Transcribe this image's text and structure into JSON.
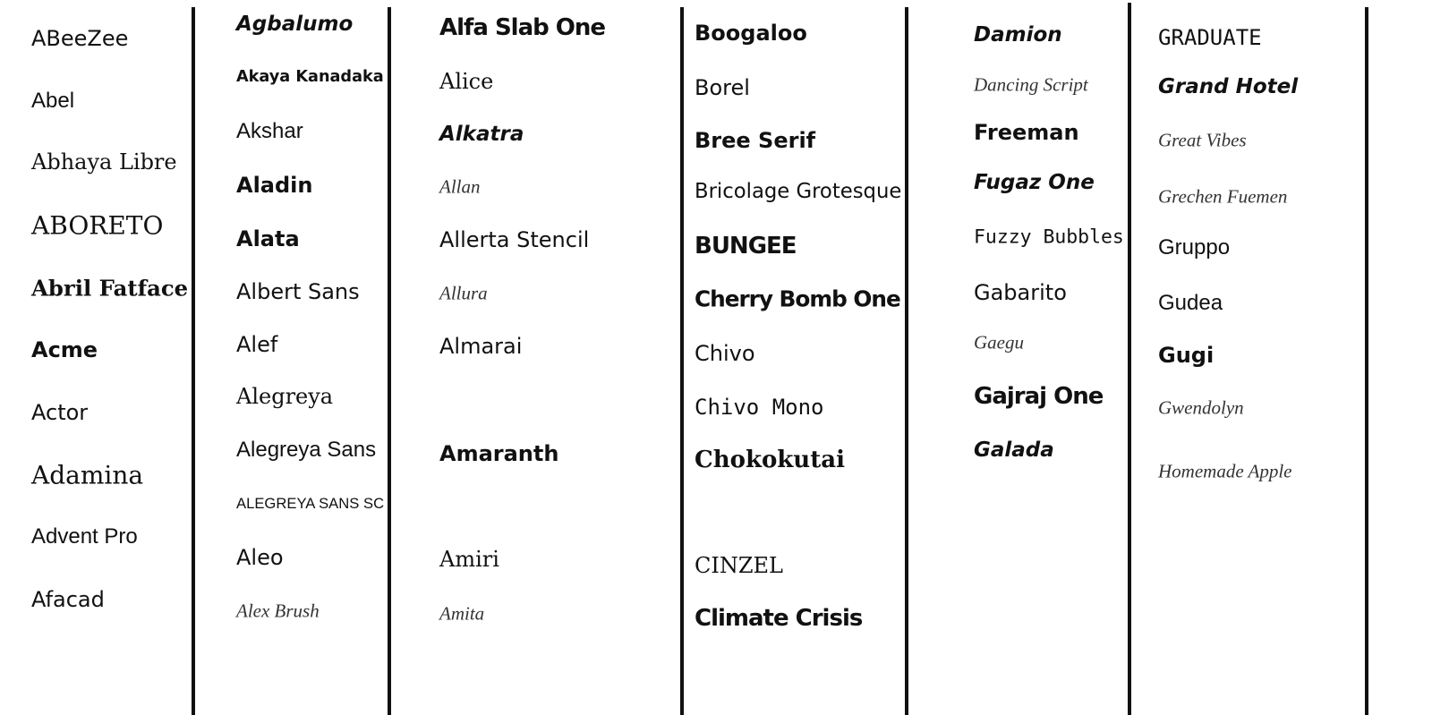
{
  "columns": [
    {
      "items": [
        "ABeeZee",
        "Abel",
        "Abhaya Libre",
        "ABORETO",
        "Abril Fatface",
        "Acme",
        "Actor",
        "Adamina",
        "Advent Pro",
        "Afacad"
      ]
    },
    {
      "items": [
        "Agbalumo",
        "Akaya Kanadaka",
        "Akshar",
        "Aladin",
        "Alata",
        "Albert Sans",
        "Alef",
        "Alegreya",
        "Alegreya Sans",
        "ALEGREYA SANS SC",
        "Aleo",
        "Alex Brush"
      ]
    },
    {
      "items": [
        "Alfa Slab One",
        "Alice",
        "Alkatra",
        "Allan",
        "Allerta Stencil",
        "Allura",
        "Almarai",
        "Amaranth",
        "Amiri",
        "Amita"
      ]
    },
    {
      "items": [
        "Boogaloo",
        "Borel",
        "Bree Serif",
        "Bricolage Grotesque",
        "BUNGEE",
        "Cherry Bomb One",
        "Chivo",
        "Chivo Mono",
        "Chokokutai",
        "CINZEL",
        "Climate Crisis"
      ]
    },
    {
      "items": [
        "Damion",
        "Dancing Script",
        "Freeman",
        "Fugaz One",
        "Fuzzy Bubbles",
        "Gabarito",
        "Gaegu",
        "Gajraj One",
        "Galada"
      ]
    },
    {
      "items": [
        "GRADUATE",
        "Grand Hotel",
        "Great Vibes",
        "Grechen Fuemen",
        "Gruppo",
        "Gudea",
        "Gugi",
        "Gwendolyn",
        "Homemade Apple"
      ]
    }
  ]
}
